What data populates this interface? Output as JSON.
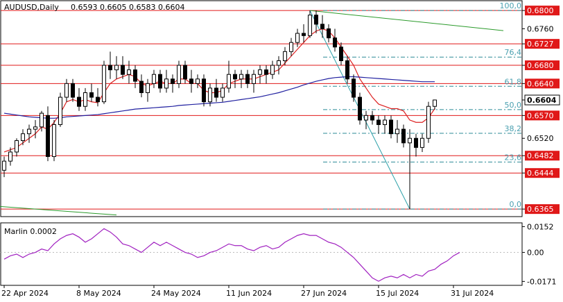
{
  "header": {
    "symbol_label": "AUDUSD,Daily",
    "ohlc_label": "0.6593 0.6605 0.6583 0.6604"
  },
  "indicator": {
    "label": "Marlin 0.0002"
  },
  "chart_data": [
    {
      "type": "candlestick",
      "symbol": "AUDUSD",
      "timeframe": "Daily",
      "ohlc_last": {
        "open": 0.6593,
        "high": 0.6605,
        "low": 0.6583,
        "close": 0.6604
      },
      "ylim": [
        0.635,
        0.682
      ],
      "y_ticks": [
        {
          "value": 0.68,
          "label": "0.6800",
          "style": "red"
        },
        {
          "value": 0.676,
          "label": "0.6760",
          "style": "plain"
        },
        {
          "value": 0.6727,
          "label": "0.6727",
          "style": "red"
        },
        {
          "value": 0.668,
          "label": "0.6680",
          "style": "red"
        },
        {
          "value": 0.664,
          "label": "0.6640",
          "style": "red"
        },
        {
          "value": 0.6604,
          "label": "0.6604",
          "style": "current"
        },
        {
          "value": 0.657,
          "label": "0.6570",
          "style": "red"
        },
        {
          "value": 0.652,
          "label": "0.6520",
          "style": "plain"
        },
        {
          "value": 0.6482,
          "label": "0.6482",
          "style": "red"
        },
        {
          "value": 0.6444,
          "label": "0.6444",
          "style": "red"
        },
        {
          "value": 0.6365,
          "label": "0.6365",
          "style": "red"
        }
      ],
      "horizontal_levels": [
        0.68,
        0.6727,
        0.668,
        0.664,
        0.657,
        0.6482,
        0.6444,
        0.6365
      ],
      "fibonacci": {
        "high": 0.68,
        "low": 0.6365,
        "levels": [
          {
            "label": "100,0",
            "value": 0.68
          },
          {
            "label": "76,4",
            "value": 0.6698
          },
          {
            "label": "61,8",
            "value": 0.6634
          },
          {
            "label": "50,0",
            "value": 0.6583
          },
          {
            "label": "38,2",
            "value": 0.6531
          },
          {
            "label": "23,6",
            "value": 0.6468
          },
          {
            "label": "0,0",
            "value": 0.6365
          }
        ]
      },
      "x_labels": [
        {
          "label": "22 Apr 2024",
          "index": 0
        },
        {
          "label": "8 May 2024",
          "index": 12
        },
        {
          "label": "24 May 2024",
          "index": 24
        },
        {
          "label": "11 Jun 2024",
          "index": 36
        },
        {
          "label": "27 Jun 2024",
          "index": 48
        },
        {
          "label": "15 Jul 2024",
          "index": 60
        },
        {
          "label": "31 Jul 2024",
          "index": 72
        }
      ],
      "candles": [
        [
          0.645,
          0.648,
          0.6435,
          0.647
        ],
        [
          0.647,
          0.65,
          0.646,
          0.649
        ],
        [
          0.649,
          0.652,
          0.648,
          0.6515
        ],
        [
          0.6515,
          0.654,
          0.6505,
          0.653
        ],
        [
          0.653,
          0.655,
          0.651,
          0.654
        ],
        [
          0.654,
          0.656,
          0.652,
          0.6545
        ],
        [
          0.6545,
          0.658,
          0.6535,
          0.6575
        ],
        [
          0.657,
          0.659,
          0.647,
          0.648
        ],
        [
          0.648,
          0.656,
          0.647,
          0.655
        ],
        [
          0.655,
          0.662,
          0.6545,
          0.661
        ],
        [
          0.661,
          0.665,
          0.66,
          0.664
        ],
        [
          0.664,
          0.665,
          0.66,
          0.661
        ],
        [
          0.661,
          0.663,
          0.658,
          0.659
        ],
        [
          0.659,
          0.663,
          0.658,
          0.662
        ],
        [
          0.662,
          0.664,
          0.66,
          0.661
        ],
        [
          0.661,
          0.663,
          0.659,
          0.66
        ],
        [
          0.66,
          0.669,
          0.6595,
          0.668
        ],
        [
          0.668,
          0.671,
          0.665,
          0.667
        ],
        [
          0.667,
          0.67,
          0.665,
          0.668
        ],
        [
          0.668,
          0.67,
          0.665,
          0.666
        ],
        [
          0.666,
          0.669,
          0.664,
          0.667
        ],
        [
          0.667,
          0.668,
          0.663,
          0.6645
        ],
        [
          0.6645,
          0.666,
          0.661,
          0.662
        ],
        [
          0.662,
          0.665,
          0.66,
          0.664
        ],
        [
          0.664,
          0.667,
          0.663,
          0.666
        ],
        [
          0.666,
          0.667,
          0.662,
          0.663
        ],
        [
          0.663,
          0.667,
          0.662,
          0.665
        ],
        [
          0.665,
          0.666,
          0.662,
          0.664
        ],
        [
          0.664,
          0.669,
          0.663,
          0.668
        ],
        [
          0.668,
          0.669,
          0.664,
          0.665
        ],
        [
          0.665,
          0.667,
          0.662,
          0.664
        ],
        [
          0.664,
          0.666,
          0.663,
          0.665
        ],
        [
          0.665,
          0.666,
          0.659,
          0.66
        ],
        [
          0.66,
          0.664,
          0.659,
          0.663
        ],
        [
          0.663,
          0.665,
          0.66,
          0.661
        ],
        [
          0.661,
          0.664,
          0.66,
          0.663
        ],
        [
          0.663,
          0.669,
          0.662,
          0.666
        ],
        [
          0.666,
          0.667,
          0.663,
          0.665
        ],
        [
          0.665,
          0.667,
          0.663,
          0.666
        ],
        [
          0.666,
          0.667,
          0.663,
          0.664
        ],
        [
          0.664,
          0.667,
          0.662,
          0.666
        ],
        [
          0.666,
          0.668,
          0.664,
          0.667
        ],
        [
          0.667,
          0.668,
          0.664,
          0.666
        ],
        [
          0.666,
          0.669,
          0.665,
          0.668
        ],
        [
          0.668,
          0.67,
          0.666,
          0.669
        ],
        [
          0.669,
          0.672,
          0.668,
          0.671
        ],
        [
          0.671,
          0.674,
          0.67,
          0.673
        ],
        [
          0.673,
          0.676,
          0.672,
          0.675
        ],
        [
          0.675,
          0.677,
          0.673,
          0.6745
        ],
        [
          0.6745,
          0.68,
          0.674,
          0.679
        ],
        [
          0.679,
          0.68,
          0.675,
          0.677
        ],
        [
          0.677,
          0.679,
          0.674,
          0.676
        ],
        [
          0.676,
          0.677,
          0.673,
          0.674
        ],
        [
          0.674,
          0.676,
          0.671,
          0.672
        ],
        [
          0.672,
          0.673,
          0.668,
          0.669
        ],
        [
          0.669,
          0.67,
          0.664,
          0.665
        ],
        [
          0.665,
          0.666,
          0.66,
          0.661
        ],
        [
          0.661,
          0.662,
          0.655,
          0.656
        ],
        [
          0.656,
          0.658,
          0.654,
          0.657
        ],
        [
          0.657,
          0.658,
          0.655,
          0.656
        ],
        [
          0.656,
          0.657,
          0.653,
          0.655
        ],
        [
          0.655,
          0.657,
          0.653,
          0.656
        ],
        [
          0.656,
          0.657,
          0.652,
          0.653
        ],
        [
          0.653,
          0.656,
          0.651,
          0.654
        ],
        [
          0.654,
          0.655,
          0.65,
          0.651
        ],
        [
          0.651,
          0.654,
          0.6365,
          0.652
        ],
        [
          0.652,
          0.653,
          0.648,
          0.65
        ],
        [
          0.65,
          0.653,
          0.649,
          0.652
        ],
        [
          0.652,
          0.66,
          0.651,
          0.659
        ],
        [
          0.659,
          0.6605,
          0.6583,
          0.6604
        ]
      ],
      "series": [
        {
          "color": "#dc2020",
          "values": [
            0.649,
            0.6495,
            0.65,
            0.651,
            0.652,
            0.653,
            0.6545,
            0.654,
            0.6555,
            0.6575,
            0.66,
            0.6605,
            0.66,
            0.6605,
            0.66,
            0.6598,
            0.662,
            0.664,
            0.665,
            0.6655,
            0.666,
            0.6655,
            0.664,
            0.6635,
            0.664,
            0.6645,
            0.664,
            0.664,
            0.665,
            0.665,
            0.664,
            0.664,
            0.6625,
            0.662,
            0.662,
            0.6625,
            0.664,
            0.6645,
            0.665,
            0.665,
            0.665,
            0.6655,
            0.666,
            0.6665,
            0.667,
            0.6685,
            0.67,
            0.6715,
            0.673,
            0.6745,
            0.6755,
            0.676,
            0.6755,
            0.674,
            0.672,
            0.67,
            0.668,
            0.665,
            0.663,
            0.661,
            0.6595,
            0.659,
            0.6585,
            0.6585,
            0.658,
            0.656,
            0.6555,
            0.6555,
            0.6565,
            0.6585
          ]
        },
        {
          "color": "#2020a0",
          "values": [
            0.6575,
            0.6573,
            0.6571,
            0.6569,
            0.6567,
            0.6566,
            0.6565,
            0.6564,
            0.6564,
            0.6565,
            0.6567,
            0.6568,
            0.6569,
            0.657,
            0.6571,
            0.6572,
            0.6574,
            0.6576,
            0.6578,
            0.658,
            0.6582,
            0.6584,
            0.6585,
            0.6586,
            0.6587,
            0.6588,
            0.6589,
            0.659,
            0.6592,
            0.6593,
            0.6594,
            0.6595,
            0.6596,
            0.6597,
            0.6598,
            0.6599,
            0.6601,
            0.6603,
            0.6605,
            0.6607,
            0.6609,
            0.6611,
            0.6614,
            0.6617,
            0.662,
            0.6624,
            0.6628,
            0.6632,
            0.6637,
            0.6641,
            0.6645,
            0.6648,
            0.6651,
            0.6653,
            0.6654,
            0.6655,
            0.6655,
            0.6654,
            0.6653,
            0.6652,
            0.6651,
            0.665,
            0.6649,
            0.6648,
            0.6647,
            0.6646,
            0.6645,
            0.6644,
            0.6644,
            0.6644
          ]
        }
      ],
      "trendlines": [
        {
          "color": "#2a9a2a",
          "from": {
            "index": 49,
            "value": 0.68
          },
          "to": {
            "index": 80,
            "value": 0.6756
          }
        },
        {
          "color": "#2a9a2a",
          "from": {
            "index": -2,
            "value": 0.6372
          },
          "to": {
            "index": 18,
            "value": 0.6352
          }
        },
        {
          "color": "#2aa0a8",
          "from": {
            "index": 49,
            "value": 0.68
          },
          "to": {
            "index": 65,
            "value": 0.6365
          }
        }
      ]
    },
    {
      "type": "line",
      "name": "Marlin",
      "ylim": [
        -0.019,
        0.017
      ],
      "y_ticks": [
        {
          "value": 0.0152,
          "label": "0.0152"
        },
        {
          "value": 0.0,
          "label": "0.00"
        },
        {
          "value": -0.0171,
          "label": "-0.0171"
        }
      ],
      "series": [
        {
          "color": "#a020c0",
          "values": [
            -0.004,
            -0.002,
            -0.001,
            -0.003,
            -0.001,
            0.0,
            0.002,
            0.001,
            0.005,
            0.008,
            0.01,
            0.011,
            0.009,
            0.006,
            0.008,
            0.011,
            0.014,
            0.012,
            0.009,
            0.005,
            0.004,
            0.002,
            0.0,
            0.003,
            0.006,
            0.004,
            0.006,
            0.004,
            0.002,
            0.0,
            -0.001,
            -0.003,
            -0.002,
            0.0,
            0.001,
            0.003,
            0.005,
            0.004,
            0.004,
            0.002,
            0.001,
            0.003,
            0.004,
            0.002,
            0.003,
            0.006,
            0.008,
            0.01,
            0.011,
            0.01,
            0.01,
            0.008,
            0.006,
            0.005,
            0.003,
            0.0,
            -0.003,
            -0.007,
            -0.011,
            -0.015,
            -0.017,
            -0.015,
            -0.014,
            -0.015,
            -0.013,
            -0.015,
            -0.013,
            -0.014,
            -0.011,
            -0.01,
            -0.007,
            -0.005,
            -0.002,
            0.0
          ]
        }
      ]
    }
  ]
}
